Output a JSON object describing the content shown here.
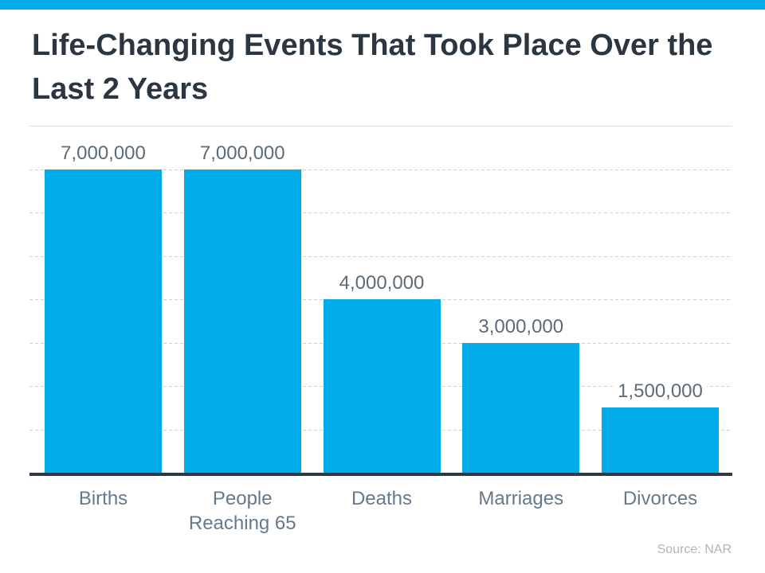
{
  "page": {
    "title": "Life-Changing Events That Took Place Over the Last 2 Years",
    "source_note": "Source: NAR",
    "accent_color": "#00acea"
  },
  "chart_data": {
    "type": "bar",
    "title": "Life-Changing Events That Took Place Over the Last 2 Years",
    "categories": [
      "Births",
      "People Reaching 65",
      "Deaths",
      "Marriages",
      "Divorces"
    ],
    "values": [
      7000000,
      7000000,
      4000000,
      3000000,
      1500000
    ],
    "value_labels": [
      "7,000,000",
      "7,000,000",
      "4,000,000",
      "3,000,000",
      "1,500,000"
    ],
    "xlabel": "",
    "ylabel": "",
    "ylim": [
      0,
      8000000
    ],
    "gridline_step": 1000000,
    "grid": true,
    "gridline_style": "dashed",
    "legend": false,
    "bar_color": "#00acea",
    "value_label_color": "#5d6b78",
    "category_label_color": "#64798c",
    "title_color": "#2b3642",
    "axis_color": "#2d3944",
    "source": "Source: NAR"
  }
}
